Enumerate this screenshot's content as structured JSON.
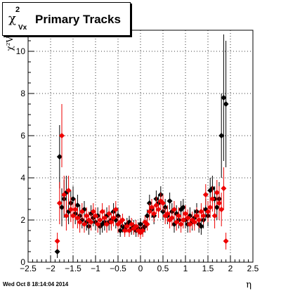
{
  "title": {
    "symbol": "χ",
    "superscript": "2",
    "subscript": "Vx",
    "text": "Primary Tracks"
  },
  "timestamp": "Wed Oct  8 18:14:04 2014",
  "chart_data": {
    "type": "scatter",
    "xlabel": "η",
    "ylabel": "χ²Vx",
    "xlim": [
      -2.5,
      2.5
    ],
    "ylim": [
      0,
      11
    ],
    "xticks": [
      -2.5,
      -2,
      -1.5,
      -1,
      -0.5,
      0,
      0.5,
      1,
      1.5,
      2,
      2.5
    ],
    "xtick_labels": [
      "−2.5",
      "−2",
      "−1.5",
      "−1",
      "−0.5",
      "0",
      "0.5",
      "1",
      "1.5",
      "2",
      "2.5"
    ],
    "yticks": [
      0,
      2,
      4,
      6,
      8,
      10
    ],
    "ytick_labels": [
      "0",
      "2",
      "4",
      "6",
      "8",
      "10"
    ],
    "grid": true,
    "colors": {
      "series_a": "#000000",
      "series_b": "#ee0000"
    },
    "series": [
      {
        "marker": "diamond",
        "color": "#000000",
        "points": [
          [
            -1.85,
            0.5,
            0.3
          ],
          [
            -1.8,
            5.0,
            1.5
          ],
          [
            -1.75,
            2.6,
            0.9
          ],
          [
            -1.7,
            3.0,
            0.9
          ],
          [
            -1.65,
            3.3,
            0.8
          ],
          [
            -1.6,
            2.4,
            0.6
          ],
          [
            -1.55,
            2.8,
            0.6
          ],
          [
            -1.5,
            3.0,
            0.6
          ],
          [
            -1.45,
            2.3,
            0.5
          ],
          [
            -1.4,
            2.7,
            0.5
          ],
          [
            -1.35,
            2.2,
            0.5
          ],
          [
            -1.3,
            2.0,
            0.4
          ],
          [
            -1.25,
            2.5,
            0.4
          ],
          [
            -1.2,
            1.9,
            0.4
          ],
          [
            -1.15,
            1.7,
            0.4
          ],
          [
            -1.1,
            2.3,
            0.4
          ],
          [
            -1.05,
            2.1,
            0.4
          ],
          [
            -1.0,
            1.9,
            0.4
          ],
          [
            -0.95,
            2.2,
            0.4
          ],
          [
            -0.9,
            1.7,
            0.4
          ],
          [
            -0.85,
            1.8,
            0.4
          ],
          [
            -0.8,
            1.9,
            0.4
          ],
          [
            -0.75,
            2.2,
            0.4
          ],
          [
            -0.7,
            1.9,
            0.4
          ],
          [
            -0.65,
            2.0,
            0.4
          ],
          [
            -0.6,
            2.4,
            0.4
          ],
          [
            -0.55,
            2.0,
            0.4
          ],
          [
            -0.5,
            2.2,
            0.4
          ],
          [
            -0.45,
            1.5,
            0.3
          ],
          [
            -0.4,
            1.7,
            0.3
          ],
          [
            -0.35,
            1.6,
            0.3
          ],
          [
            -0.3,
            1.8,
            0.3
          ],
          [
            -0.25,
            1.9,
            0.3
          ],
          [
            -0.2,
            1.6,
            0.3
          ],
          [
            -0.15,
            1.7,
            0.3
          ],
          [
            -0.1,
            1.5,
            0.3
          ],
          [
            -0.05,
            1.6,
            0.3
          ],
          [
            0.0,
            1.8,
            0.3
          ],
          [
            0.05,
            1.6,
            0.3
          ],
          [
            0.1,
            1.7,
            0.3
          ],
          [
            0.15,
            2.2,
            0.3
          ],
          [
            0.2,
            2.8,
            0.4
          ],
          [
            0.25,
            2.5,
            0.4
          ],
          [
            0.3,
            2.2,
            0.4
          ],
          [
            0.35,
            3.0,
            0.4
          ],
          [
            0.4,
            2.8,
            0.4
          ],
          [
            0.45,
            3.2,
            0.4
          ],
          [
            0.5,
            2.4,
            0.4
          ],
          [
            0.55,
            2.6,
            0.4
          ],
          [
            0.6,
            2.2,
            0.4
          ],
          [
            0.65,
            2.9,
            0.4
          ],
          [
            0.7,
            2.4,
            0.4
          ],
          [
            0.75,
            1.8,
            0.4
          ],
          [
            0.8,
            2.3,
            0.4
          ],
          [
            0.85,
            2.0,
            0.4
          ],
          [
            0.9,
            2.5,
            0.4
          ],
          [
            0.95,
            2.6,
            0.4
          ],
          [
            1.0,
            2.0,
            0.4
          ],
          [
            1.05,
            1.8,
            0.4
          ],
          [
            1.1,
            2.2,
            0.4
          ],
          [
            1.15,
            1.9,
            0.4
          ],
          [
            1.2,
            2.1,
            0.4
          ],
          [
            1.25,
            2.4,
            0.4
          ],
          [
            1.3,
            1.8,
            0.4
          ],
          [
            1.35,
            1.7,
            0.4
          ],
          [
            1.4,
            2.0,
            0.4
          ],
          [
            1.45,
            2.5,
            0.5
          ],
          [
            1.5,
            2.2,
            0.5
          ],
          [
            1.55,
            3.4,
            0.6
          ],
          [
            1.6,
            3.5,
            0.6
          ],
          [
            1.65,
            3.0,
            0.6
          ],
          [
            1.7,
            2.6,
            0.6
          ],
          [
            1.75,
            3.0,
            0.8
          ],
          [
            1.8,
            6.0,
            2.0
          ],
          [
            1.85,
            7.8,
            3.0
          ],
          [
            1.9,
            7.5,
            3.0
          ]
        ]
      },
      {
        "marker": "diamond",
        "color": "#ee0000",
        "points": [
          [
            -1.85,
            1.0,
            0.4
          ],
          [
            -1.8,
            2.8,
            1.0
          ],
          [
            -1.75,
            6.0,
            1.5
          ],
          [
            -1.7,
            3.2,
            0.9
          ],
          [
            -1.65,
            2.2,
            0.7
          ],
          [
            -1.6,
            3.4,
            0.7
          ],
          [
            -1.55,
            2.5,
            0.6
          ],
          [
            -1.5,
            2.2,
            0.6
          ],
          [
            -1.45,
            2.5,
            0.5
          ],
          [
            -1.4,
            2.1,
            0.5
          ],
          [
            -1.35,
            1.9,
            0.5
          ],
          [
            -1.3,
            2.4,
            0.4
          ],
          [
            -1.25,
            1.8,
            0.4
          ],
          [
            -1.2,
            2.2,
            0.4
          ],
          [
            -1.15,
            2.0,
            0.4
          ],
          [
            -1.1,
            1.9,
            0.4
          ],
          [
            -1.05,
            2.4,
            0.4
          ],
          [
            -1.0,
            2.2,
            0.4
          ],
          [
            -0.95,
            1.8,
            0.4
          ],
          [
            -0.9,
            2.0,
            0.4
          ],
          [
            -0.85,
            2.4,
            0.4
          ],
          [
            -0.8,
            2.1,
            0.4
          ],
          [
            -0.75,
            1.8,
            0.4
          ],
          [
            -0.7,
            2.3,
            0.4
          ],
          [
            -0.65,
            1.9,
            0.4
          ],
          [
            -0.6,
            2.1,
            0.4
          ],
          [
            -0.55,
            2.5,
            0.4
          ],
          [
            -0.5,
            1.8,
            0.4
          ],
          [
            -0.45,
            1.9,
            0.3
          ],
          [
            -0.4,
            2.0,
            0.3
          ],
          [
            -0.35,
            1.5,
            0.3
          ],
          [
            -0.3,
            1.7,
            0.3
          ],
          [
            -0.25,
            1.5,
            0.3
          ],
          [
            -0.2,
            1.8,
            0.3
          ],
          [
            -0.15,
            1.6,
            0.3
          ],
          [
            -0.1,
            1.7,
            0.3
          ],
          [
            -0.05,
            1.5,
            0.3
          ],
          [
            0.0,
            1.4,
            0.3
          ],
          [
            0.05,
            1.5,
            0.3
          ],
          [
            0.1,
            1.9,
            0.3
          ],
          [
            0.15,
            1.8,
            0.3
          ],
          [
            0.2,
            2.4,
            0.4
          ],
          [
            0.25,
            2.6,
            0.4
          ],
          [
            0.3,
            2.3,
            0.4
          ],
          [
            0.35,
            2.7,
            0.4
          ],
          [
            0.4,
            2.5,
            0.4
          ],
          [
            0.45,
            2.9,
            0.4
          ],
          [
            0.5,
            2.8,
            0.4
          ],
          [
            0.55,
            2.2,
            0.4
          ],
          [
            0.6,
            2.3,
            0.4
          ],
          [
            0.65,
            2.0,
            0.4
          ],
          [
            0.7,
            2.1,
            0.4
          ],
          [
            0.75,
            2.5,
            0.4
          ],
          [
            0.8,
            1.9,
            0.4
          ],
          [
            0.85,
            2.2,
            0.4
          ],
          [
            0.9,
            1.8,
            0.4
          ],
          [
            0.95,
            2.0,
            0.4
          ],
          [
            1.0,
            2.3,
            0.4
          ],
          [
            1.05,
            2.1,
            0.4
          ],
          [
            1.1,
            1.8,
            0.4
          ],
          [
            1.15,
            2.0,
            0.4
          ],
          [
            1.2,
            1.9,
            0.4
          ],
          [
            1.25,
            2.2,
            0.4
          ],
          [
            1.3,
            2.0,
            0.4
          ],
          [
            1.35,
            2.4,
            0.4
          ],
          [
            1.4,
            2.2,
            0.4
          ],
          [
            1.45,
            3.2,
            0.5
          ],
          [
            1.5,
            2.4,
            0.5
          ],
          [
            1.55,
            2.6,
            0.5
          ],
          [
            1.6,
            3.0,
            0.6
          ],
          [
            1.65,
            2.2,
            0.6
          ],
          [
            1.7,
            3.3,
            0.6
          ],
          [
            1.75,
            2.8,
            0.8
          ],
          [
            1.8,
            2.5,
            0.8
          ],
          [
            1.85,
            3.5,
            1.0
          ],
          [
            1.9,
            1.0,
            0.4
          ]
        ]
      }
    ]
  }
}
